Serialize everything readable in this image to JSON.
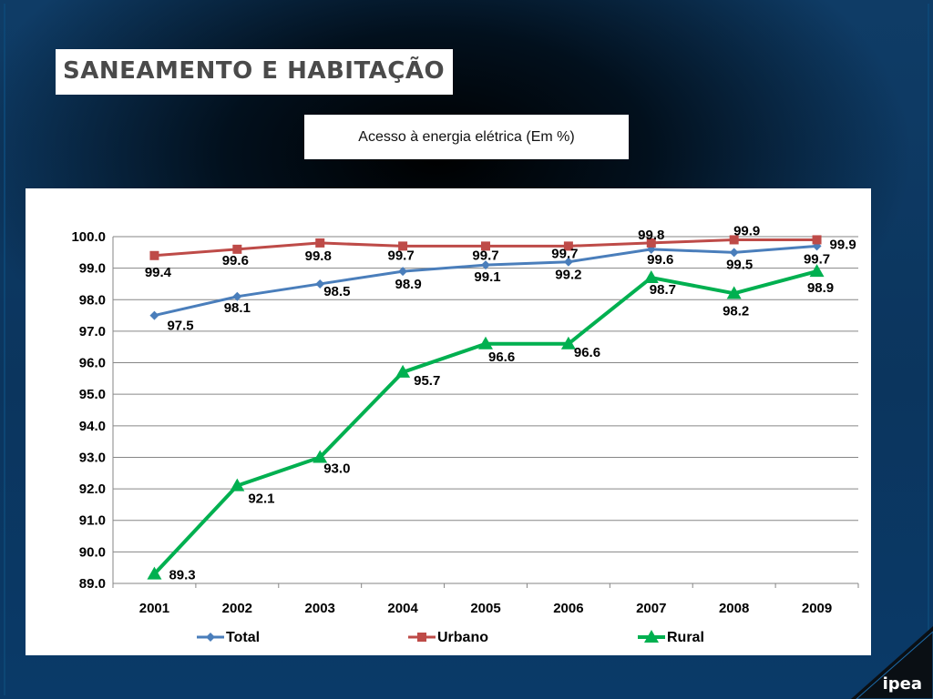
{
  "slide": {
    "title": "SANEAMENTO E HABITAÇÃO",
    "subtitle": "Acesso à energia elétrica (Em %)",
    "logo": "ipea"
  },
  "chart_data": {
    "type": "line",
    "categories": [
      "2001",
      "2002",
      "2003",
      "2004",
      "2005",
      "2006",
      "2007",
      "2008",
      "2009"
    ],
    "ylim": [
      89.0,
      100.0
    ],
    "yticks": [
      "89.0",
      "90.0",
      "91.0",
      "92.0",
      "93.0",
      "94.0",
      "95.0",
      "96.0",
      "97.0",
      "98.0",
      "99.0",
      "100.0"
    ],
    "grid": true,
    "legend_position": "bottom",
    "series": [
      {
        "name": "Total",
        "color": "#4a7ebb",
        "marker": "diamond",
        "values": [
          97.5,
          98.1,
          98.5,
          98.9,
          99.1,
          99.2,
          99.6,
          99.5,
          99.7
        ],
        "labels": [
          "97.5",
          "98.1",
          "98.5",
          "98.9",
          "99.1",
          "99.2",
          "99.6",
          "99.5",
          "99.7"
        ]
      },
      {
        "name": "Urbano",
        "color": "#be4b48",
        "marker": "square",
        "values": [
          99.4,
          99.6,
          99.8,
          99.7,
          99.7,
          99.7,
          99.8,
          99.9,
          99.9
        ],
        "labels": [
          "99.4",
          "99.6",
          "99.8",
          "99.7",
          "99.7",
          "99.7",
          "99.8",
          "99.9",
          "99.9"
        ]
      },
      {
        "name": "Rural",
        "color": "#00b050",
        "marker": "triangle",
        "values": [
          89.3,
          92.1,
          93.0,
          95.7,
          96.6,
          96.6,
          98.7,
          98.2,
          98.9
        ],
        "labels": [
          "89.3",
          "92.1",
          "93.0",
          "95.7",
          "96.6",
          "96.6",
          "98.7",
          "98.2",
          "98.9"
        ]
      }
    ]
  }
}
